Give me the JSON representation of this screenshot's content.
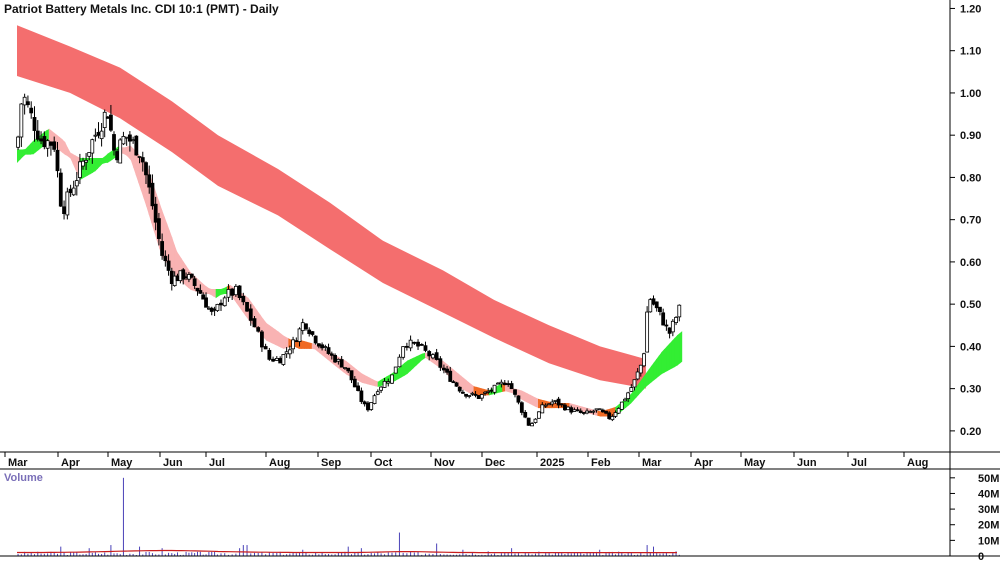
{
  "chart_data": {
    "type": "candlestick",
    "title": "Patriot Battery Metals Inc. CDI 10:1 (PMT) - Daily",
    "price_axis": {
      "ylim": [
        0.15,
        1.22
      ],
      "ticks": [
        "1.20",
        "1.10",
        "1.00",
        "0.90",
        "0.80",
        "0.70",
        "0.60",
        "0.50",
        "0.40",
        "0.30",
        "0.20"
      ]
    },
    "x_ticks": [
      "Mar",
      "Apr",
      "May",
      "Jun",
      "Jul",
      "Aug",
      "Sep",
      "Oct",
      "Nov",
      "Dec",
      "2025",
      "Feb",
      "Mar",
      "Apr",
      "May",
      "Jun",
      "Jul",
      "Aug"
    ],
    "volume_panel": {
      "label": "Volume",
      "ylim": [
        0,
        55
      ],
      "ticks": [
        "50M",
        "40M",
        "30M",
        "20M",
        "10M",
        "0"
      ]
    },
    "close_path": [
      {
        "m": 0,
        "v": 0.87
      },
      {
        "m": 0.1,
        "v": 1.0
      },
      {
        "m": 0.25,
        "v": 0.95
      },
      {
        "m": 0.45,
        "v": 0.89
      },
      {
        "m": 0.7,
        "v": 0.88
      },
      {
        "m": 0.85,
        "v": 0.72
      },
      {
        "m": 1.2,
        "v": 0.82
      },
      {
        "m": 1.5,
        "v": 0.9
      },
      {
        "m": 1.75,
        "v": 0.96
      },
      {
        "m": 1.9,
        "v": 0.85
      },
      {
        "m": 2.1,
        "v": 0.9
      },
      {
        "m": 2.4,
        "v": 0.86
      },
      {
        "m": 2.6,
        "v": 0.75
      },
      {
        "m": 2.8,
        "v": 0.62
      },
      {
        "m": 3.0,
        "v": 0.56
      },
      {
        "m": 3.3,
        "v": 0.57
      },
      {
        "m": 3.6,
        "v": 0.53
      },
      {
        "m": 3.9,
        "v": 0.47
      },
      {
        "m": 4.1,
        "v": 0.52
      },
      {
        "m": 4.3,
        "v": 0.53
      },
      {
        "m": 4.6,
        "v": 0.45
      },
      {
        "m": 4.85,
        "v": 0.37
      },
      {
        "m": 5.05,
        "v": 0.37
      },
      {
        "m": 5.3,
        "v": 0.41
      },
      {
        "m": 5.5,
        "v": 0.46
      },
      {
        "m": 5.7,
        "v": 0.42
      },
      {
        "m": 6.0,
        "v": 0.38
      },
      {
        "m": 6.3,
        "v": 0.35
      },
      {
        "m": 6.6,
        "v": 0.27
      },
      {
        "m": 6.7,
        "v": 0.25
      },
      {
        "m": 6.9,
        "v": 0.3
      },
      {
        "m": 7.15,
        "v": 0.33
      },
      {
        "m": 7.35,
        "v": 0.41
      },
      {
        "m": 7.6,
        "v": 0.4
      },
      {
        "m": 7.85,
        "v": 0.37
      },
      {
        "m": 8.1,
        "v": 0.33
      },
      {
        "m": 8.4,
        "v": 0.29
      },
      {
        "m": 8.7,
        "v": 0.28
      },
      {
        "m": 9.0,
        "v": 0.3
      },
      {
        "m": 9.25,
        "v": 0.32
      },
      {
        "m": 9.5,
        "v": 0.25
      },
      {
        "m": 9.65,
        "v": 0.21
      },
      {
        "m": 9.9,
        "v": 0.26
      },
      {
        "m": 10.1,
        "v": 0.27
      },
      {
        "m": 10.4,
        "v": 0.25
      },
      {
        "m": 10.7,
        "v": 0.24
      },
      {
        "m": 10.95,
        "v": 0.25
      },
      {
        "m": 11.2,
        "v": 0.23
      },
      {
        "m": 11.45,
        "v": 0.27
      },
      {
        "m": 11.65,
        "v": 0.31
      },
      {
        "m": 11.85,
        "v": 0.37
      },
      {
        "m": 11.95,
        "v": 0.52
      },
      {
        "m": 12.15,
        "v": 0.48
      },
      {
        "m": 12.35,
        "v": 0.43
      },
      {
        "m": 12.55,
        "v": 0.49
      }
    ],
    "long_term_band": [
      {
        "m": 0,
        "top": 1.16,
        "bot": 1.04
      },
      {
        "m": 1,
        "top": 1.11,
        "bot": 1.0
      },
      {
        "m": 2,
        "top": 1.06,
        "bot": 0.94
      },
      {
        "m": 3,
        "top": 0.98,
        "bot": 0.86
      },
      {
        "m": 4,
        "top": 0.9,
        "bot": 0.78
      },
      {
        "m": 5,
        "top": 0.82,
        "bot": 0.71
      },
      {
        "m": 6,
        "top": 0.74,
        "bot": 0.63
      },
      {
        "m": 7,
        "top": 0.65,
        "bot": 0.55
      },
      {
        "m": 8,
        "top": 0.58,
        "bot": 0.48
      },
      {
        "m": 9,
        "top": 0.51,
        "bot": 0.42
      },
      {
        "m": 10,
        "top": 0.45,
        "bot": 0.36
      },
      {
        "m": 11,
        "top": 0.4,
        "bot": 0.32
      },
      {
        "m": 11.9,
        "top": 0.37,
        "bot": 0.3
      }
    ],
    "short_term_band": [
      {
        "m": 0,
        "a": 0.84,
        "b": 0.86
      },
      {
        "m": 0.3,
        "a": 0.88,
        "b": 0.86
      },
      {
        "m": 0.6,
        "a": 0.91,
        "b": 0.89
      },
      {
        "m": 0.9,
        "a": 0.88,
        "b": 0.86
      },
      {
        "m": 1.2,
        "a": 0.8,
        "b": 0.84
      },
      {
        "m": 1.5,
        "a": 0.82,
        "b": 0.84
      },
      {
        "m": 1.75,
        "a": 0.85,
        "b": 0.84
      },
      {
        "m": 2.0,
        "a": 0.87,
        "b": 0.86
      },
      {
        "m": 2.2,
        "a": 0.85,
        "b": 0.87
      },
      {
        "m": 2.5,
        "a": 0.74,
        "b": 0.83
      },
      {
        "m": 2.8,
        "a": 0.62,
        "b": 0.72
      },
      {
        "m": 3.1,
        "a": 0.57,
        "b": 0.62
      },
      {
        "m": 3.4,
        "a": 0.54,
        "b": 0.57
      },
      {
        "m": 3.7,
        "a": 0.53,
        "b": 0.54
      },
      {
        "m": 3.95,
        "a": 0.53,
        "b": 0.52
      },
      {
        "m": 4.2,
        "a": 0.53,
        "b": 0.54
      },
      {
        "m": 4.5,
        "a": 0.47,
        "b": 0.51
      },
      {
        "m": 4.8,
        "a": 0.42,
        "b": 0.45
      },
      {
        "m": 5.1,
        "a": 0.4,
        "b": 0.42
      },
      {
        "m": 5.4,
        "a": 0.41,
        "b": 0.4
      },
      {
        "m": 5.7,
        "a": 0.4,
        "b": 0.4
      },
      {
        "m": 6.0,
        "a": 0.37,
        "b": 0.38
      },
      {
        "m": 6.3,
        "a": 0.34,
        "b": 0.36
      },
      {
        "m": 6.6,
        "a": 0.32,
        "b": 0.33
      },
      {
        "m": 6.9,
        "a": 0.31,
        "b": 0.31
      },
      {
        "m": 7.15,
        "a": 0.33,
        "b": 0.32
      },
      {
        "m": 7.4,
        "a": 0.36,
        "b": 0.34
      },
      {
        "m": 7.7,
        "a": 0.38,
        "b": 0.38
      },
      {
        "m": 8.0,
        "a": 0.35,
        "b": 0.36
      },
      {
        "m": 8.3,
        "a": 0.31,
        "b": 0.33
      },
      {
        "m": 8.6,
        "a": 0.29,
        "b": 0.3
      },
      {
        "m": 8.9,
        "a": 0.29,
        "b": 0.29
      },
      {
        "m": 9.2,
        "a": 0.31,
        "b": 0.3
      },
      {
        "m": 9.5,
        "a": 0.28,
        "b": 0.29
      },
      {
        "m": 9.8,
        "a": 0.26,
        "b": 0.27
      },
      {
        "m": 10.1,
        "a": 0.26,
        "b": 0.26
      },
      {
        "m": 10.4,
        "a": 0.26,
        "b": 0.26
      },
      {
        "m": 10.7,
        "a": 0.25,
        "b": 0.25
      },
      {
        "m": 11.0,
        "a": 0.24,
        "b": 0.24
      },
      {
        "m": 11.3,
        "a": 0.25,
        "b": 0.24
      },
      {
        "m": 11.6,
        "a": 0.28,
        "b": 0.27
      },
      {
        "m": 11.9,
        "a": 0.33,
        "b": 0.31
      },
      {
        "m": 12.2,
        "a": 0.38,
        "b": 0.34
      },
      {
        "m": 12.5,
        "a": 0.42,
        "b": 0.36
      },
      {
        "m": 12.6,
        "a": 0.43,
        "b": 0.37
      }
    ],
    "volume_spikes": [
      {
        "m": 0.8,
        "v": 6
      },
      {
        "m": 1.4,
        "v": 5
      },
      {
        "m": 1.8,
        "v": 7
      },
      {
        "m": 2.05,
        "v": 50
      },
      {
        "m": 2.35,
        "v": 6
      },
      {
        "m": 2.8,
        "v": 5
      },
      {
        "m": 4.35,
        "v": 5
      },
      {
        "m": 4.45,
        "v": 7
      },
      {
        "m": 5.45,
        "v": 4
      },
      {
        "m": 6.35,
        "v": 6
      },
      {
        "m": 6.6,
        "v": 5
      },
      {
        "m": 7.25,
        "v": 15
      },
      {
        "m": 7.9,
        "v": 8
      },
      {
        "m": 8.4,
        "v": 4
      },
      {
        "m": 8.9,
        "v": 3
      },
      {
        "m": 9.3,
        "v": 5
      },
      {
        "m": 11.0,
        "v": 4
      },
      {
        "m": 11.95,
        "v": 7
      },
      {
        "m": 12.05,
        "v": 6
      },
      {
        "m": 12.5,
        "v": 3
      }
    ],
    "colors": {
      "long_band": "#f46e6e",
      "short_band_down": "#f9b3b3",
      "short_band_up": "#33ee33",
      "short_band_mixed": "#f06a24",
      "candle": "#000000",
      "volume_bar": "#4a42b8",
      "volume_ma": "#c81e1e",
      "grid": "#000000"
    },
    "grid": false,
    "legend": "none"
  }
}
